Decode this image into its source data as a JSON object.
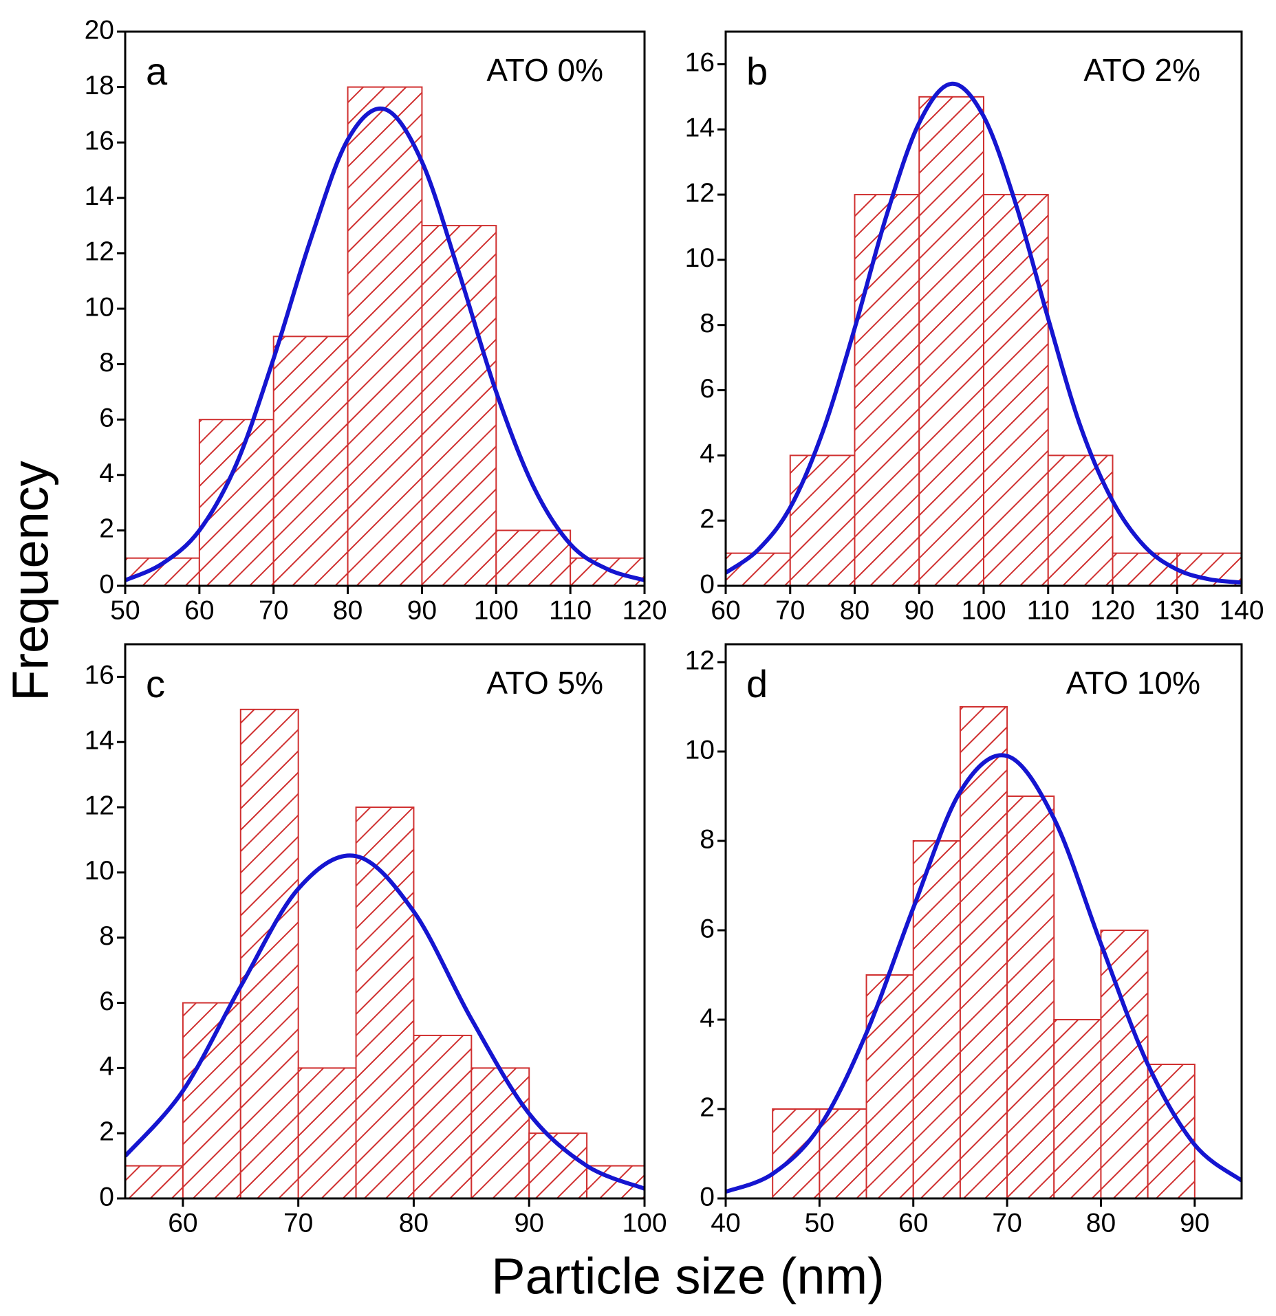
{
  "axis_labels": {
    "y": "Frequency",
    "x": "Particle size (nm)"
  },
  "chart_data": [
    {
      "type": "histogram",
      "label": "a",
      "annotation": "ATO 0%",
      "bins": [
        50,
        60,
        70,
        80,
        90,
        100,
        110,
        120
      ],
      "values": [
        1,
        6,
        9,
        18,
        13,
        2,
        1
      ],
      "color": "#d03030",
      "fit": {
        "color": "#1515d0",
        "x": [
          50,
          55,
          60,
          65,
          70,
          75,
          80,
          85,
          90,
          95,
          100,
          105,
          110,
          115,
          120
        ],
        "values": [
          0.2,
          0.8,
          2.0,
          4.4,
          8.2,
          12.5,
          16.1,
          17.2,
          15.3,
          11.3,
          7.0,
          3.6,
          1.5,
          0.6,
          0.2
        ]
      },
      "xlim": [
        50,
        120
      ],
      "xticks": [
        50,
        60,
        70,
        80,
        90,
        100,
        110,
        120
      ],
      "ylim": [
        0,
        20
      ],
      "yticks": [
        0,
        2,
        4,
        6,
        8,
        10,
        12,
        14,
        16,
        18,
        20
      ]
    },
    {
      "type": "histogram",
      "label": "b",
      "annotation": "ATO 2%",
      "bins": [
        60,
        70,
        80,
        90,
        100,
        110,
        120,
        130,
        140
      ],
      "values": [
        1,
        4,
        12,
        15,
        12,
        4,
        1,
        1
      ],
      "color": "#d03030",
      "fit": {
        "color": "#1515d0",
        "x": [
          60,
          65,
          70,
          75,
          80,
          85,
          90,
          95,
          100,
          105,
          110,
          115,
          120,
          125,
          130,
          135,
          140
        ],
        "values": [
          0.4,
          1.1,
          2.4,
          4.7,
          7.9,
          11.4,
          14.2,
          15.4,
          14.4,
          11.7,
          8.2,
          4.9,
          2.6,
          1.2,
          0.5,
          0.2,
          0.1
        ]
      },
      "xlim": [
        60,
        140
      ],
      "xticks": [
        60,
        70,
        80,
        90,
        100,
        110,
        120,
        130,
        140
      ],
      "ylim": [
        0,
        17
      ],
      "yticks": [
        0,
        2,
        4,
        6,
        8,
        10,
        12,
        14,
        16
      ]
    },
    {
      "type": "histogram",
      "label": "c",
      "annotation": "ATO 5%",
      "bins": [
        55,
        60,
        65,
        70,
        75,
        80,
        85,
        90,
        95,
        100
      ],
      "values": [
        1,
        6,
        15,
        4,
        12,
        5,
        4,
        2,
        1
      ],
      "color": "#d03030",
      "fit": {
        "color": "#1515d0",
        "x": [
          55,
          60,
          65,
          70,
          75,
          80,
          85,
          90,
          95,
          100
        ],
        "values": [
          1.3,
          3.3,
          6.5,
          9.5,
          10.5,
          8.8,
          5.5,
          2.6,
          1.0,
          0.3
        ]
      },
      "xlim": [
        55,
        100
      ],
      "xticks": [
        60,
        70,
        80,
        90,
        100
      ],
      "ylim": [
        0,
        17
      ],
      "yticks": [
        0,
        2,
        4,
        6,
        8,
        10,
        12,
        14,
        16
      ]
    },
    {
      "type": "histogram",
      "label": "d",
      "annotation": "ATO 10%",
      "bins": [
        45,
        50,
        55,
        60,
        65,
        70,
        75,
        80,
        85,
        90
      ],
      "values": [
        2,
        2,
        5,
        8,
        11,
        9,
        4,
        6,
        3
      ],
      "color": "#d03030",
      "fit": {
        "color": "#1515d0",
        "x": [
          40,
          45,
          50,
          55,
          60,
          65,
          70,
          75,
          80,
          85,
          90,
          95
        ],
        "values": [
          0.15,
          0.55,
          1.6,
          3.7,
          6.5,
          9.1,
          9.9,
          8.5,
          5.7,
          3.0,
          1.2,
          0.4
        ]
      },
      "xlim": [
        40,
        95
      ],
      "xticks": [
        40,
        50,
        60,
        70,
        80,
        90
      ],
      "ylim": [
        0,
        12.4
      ],
      "yticks": [
        0,
        2,
        4,
        6,
        8,
        10,
        12
      ]
    }
  ]
}
